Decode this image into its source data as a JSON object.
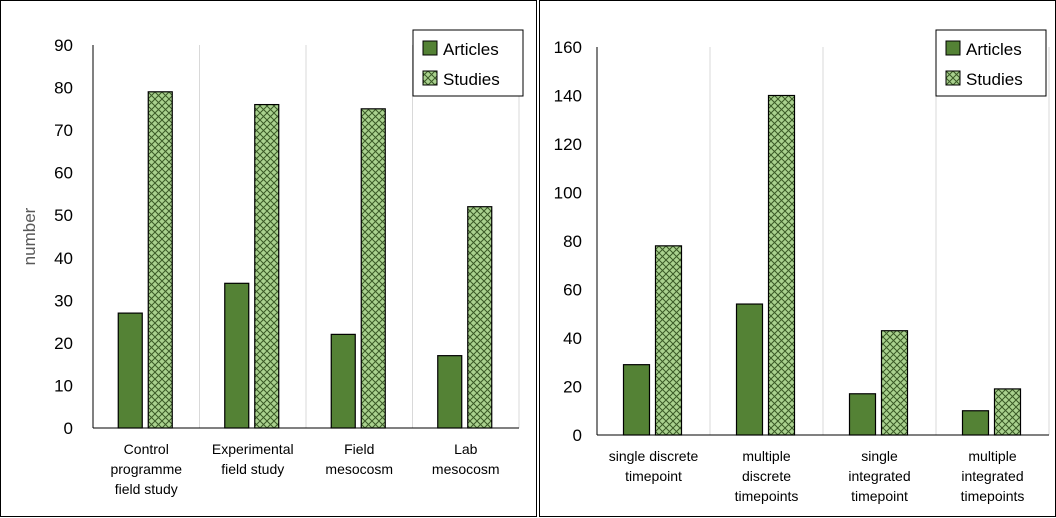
{
  "chart_data": [
    {
      "type": "bar",
      "ylabel": "number",
      "xlabel": "",
      "ylim": [
        0,
        90
      ],
      "yticks": [
        0,
        10,
        20,
        30,
        40,
        50,
        60,
        70,
        80,
        90
      ],
      "grid": "vertical",
      "legend": "top-right",
      "categories": [
        [
          "Control",
          "programme",
          "field study"
        ],
        [
          "Experimental",
          "field study"
        ],
        [
          "Field",
          "mesocosm"
        ],
        [
          "Lab",
          "mesocosm"
        ]
      ],
      "series": [
        {
          "name": "Articles",
          "values": [
            27,
            34,
            22,
            17
          ],
          "color": "#548235",
          "pattern": "solid"
        },
        {
          "name": "Studies",
          "values": [
            79,
            76,
            75,
            52
          ],
          "color": "#a9d18e",
          "pattern": "crosshatch"
        }
      ]
    },
    {
      "type": "bar",
      "ylabel": "",
      "xlabel": "",
      "ylim": [
        0,
        160
      ],
      "yticks": [
        0,
        20,
        40,
        60,
        80,
        100,
        120,
        140,
        160
      ],
      "grid": "vertical",
      "legend": "top-right",
      "categories": [
        [
          "single discrete",
          "timepoint"
        ],
        [
          "multiple",
          "discrete",
          "timepoints"
        ],
        [
          "single",
          "integrated",
          "timepoint"
        ],
        [
          "multiple",
          "integrated",
          "timepoints"
        ]
      ],
      "series": [
        {
          "name": "Articles",
          "values": [
            29,
            54,
            17,
            10
          ],
          "color": "#548235",
          "pattern": "solid"
        },
        {
          "name": "Studies",
          "values": [
            78,
            140,
            43,
            19
          ],
          "color": "#a9d18e",
          "pattern": "crosshatch"
        }
      ]
    }
  ]
}
